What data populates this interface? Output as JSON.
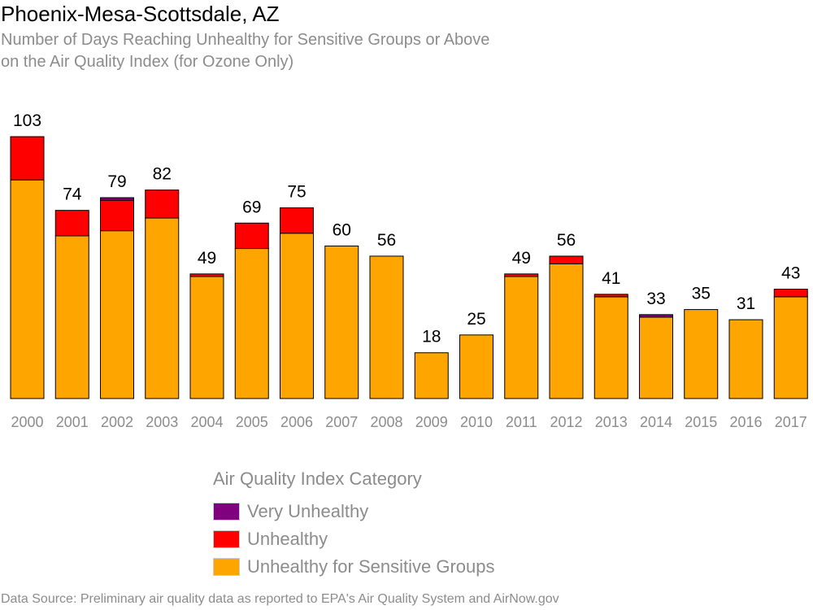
{
  "header": {
    "title": "Phoenix-Mesa-Scottsdale, AZ",
    "subtitle_line1": "Number of Days Reaching Unhealthy for Sensitive Groups or Above",
    "subtitle_line2": "on the Air Quality Index (for Ozone Only)"
  },
  "legend": {
    "title": "Air Quality Index Category",
    "items": [
      {
        "label": "Very Unhealthy",
        "color": "#800080"
      },
      {
        "label": "Unhealthy",
        "color": "#ff0000"
      },
      {
        "label": "Unhealthy for Sensitive Groups",
        "color": "#ffa500"
      }
    ]
  },
  "footer": {
    "source": "Data Source: Preliminary air quality data as reported to EPA's Air Quality System and AirNow.gov"
  },
  "chart_data": {
    "type": "bar",
    "stacked": true,
    "categories": [
      "2000",
      "2001",
      "2002",
      "2003",
      "2004",
      "2005",
      "2006",
      "2007",
      "2008",
      "2009",
      "2010",
      "2011",
      "2012",
      "2013",
      "2014",
      "2015",
      "2016",
      "2017"
    ],
    "series": [
      {
        "name": "Unhealthy for Sensitive Groups",
        "color": "#ffa500",
        "values": [
          86,
          64,
          66,
          71,
          48,
          59,
          65,
          60,
          56,
          18,
          25,
          48,
          53,
          40,
          32,
          35,
          31,
          40
        ]
      },
      {
        "name": "Unhealthy",
        "color": "#ff0000",
        "values": [
          17,
          10,
          12,
          11,
          1,
          10,
          10,
          0,
          0,
          0,
          0,
          1,
          3,
          1,
          0,
          0,
          0,
          3
        ]
      },
      {
        "name": "Very Unhealthy",
        "color": "#800080",
        "values": [
          0,
          0,
          1,
          0,
          0,
          0,
          0,
          0,
          0,
          0,
          0,
          0,
          0,
          0,
          1,
          0,
          0,
          0
        ]
      }
    ],
    "totals": [
      103,
      74,
      79,
      82,
      49,
      69,
      75,
      60,
      56,
      18,
      25,
      49,
      56,
      41,
      33,
      35,
      31,
      43
    ],
    "ylim": [
      0,
      103
    ],
    "grid": false,
    "legend_position": "bottom"
  }
}
